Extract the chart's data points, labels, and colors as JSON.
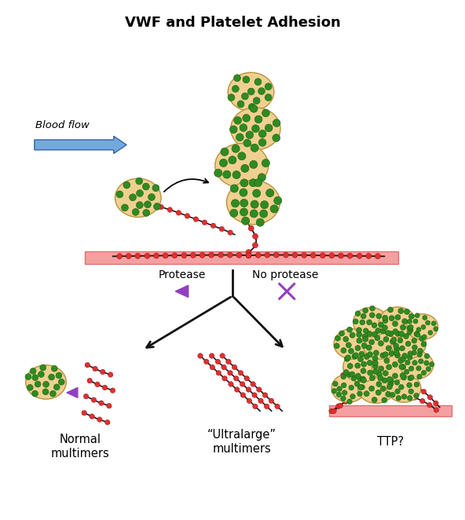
{
  "title": "VWF and Platelet Adhesion",
  "title_fontsize": 13,
  "title_fontweight": "bold",
  "bg_color": "#ffffff",
  "platelet_body_color": "#F0D090",
  "platelet_body_edge": "#B8943C",
  "platelet_dot_color": "#2E8B22",
  "platelet_dot_edge": "#1A5C10",
  "vwf_line_color": "#1a1a1a",
  "vwf_bead_color": "#E03030",
  "vwf_bead_edge": "#900000",
  "endothelium_color": "#F5A0A0",
  "endothelium_edge": "#E07070",
  "blood_flow_color": "#5B9BD5",
  "blood_flow_edge": "#2050A0",
  "protease_tri_color": "#9040C0",
  "x_mark_color": "#9040C0",
  "fork_arrow_color": "#111111",
  "label_normal": "Normal\nmultimers",
  "label_ultra": "“Ultralarge”\nmultimers",
  "label_ttp": "TTP?",
  "label_protease": "Protease",
  "label_no_protease": "No protease",
  "label_blood_flow": "Blood flow",
  "figsize": [
    5.92,
    6.62
  ],
  "dpi": 100
}
